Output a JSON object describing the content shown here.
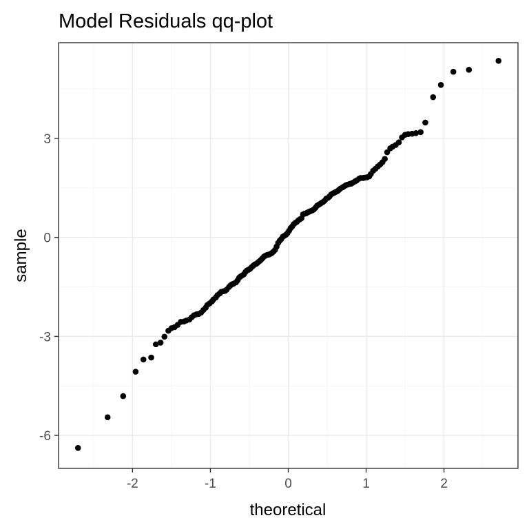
{
  "chart_data": {
    "type": "scatter",
    "title": "Model Residuals qq-plot",
    "xlabel": "theoretical",
    "ylabel": "sample",
    "xlim": [
      -2.95,
      2.95
    ],
    "ylim": [
      -7.0,
      5.9
    ],
    "x_ticks": [
      -2,
      -1,
      0,
      1,
      2
    ],
    "y_ticks": [
      -6,
      -3,
      0,
      3
    ],
    "x_tick_labels": [
      "-2",
      "-1",
      "0",
      "1",
      "2"
    ],
    "y_tick_labels": [
      "-6",
      "-3",
      "0",
      "3"
    ],
    "grid": true,
    "point_color": "#000000",
    "points": [
      [
        -2.7,
        -6.38
      ],
      [
        -2.32,
        -5.45
      ],
      [
        -2.12,
        -4.81
      ],
      [
        -1.96,
        -4.07
      ],
      [
        -1.86,
        -3.7
      ],
      [
        -1.76,
        -3.64
      ],
      [
        -1.7,
        -3.24
      ],
      [
        -1.64,
        -3.19
      ],
      [
        -1.59,
        -3.01
      ],
      [
        -1.54,
        -2.83
      ],
      [
        -1.5,
        -2.75
      ],
      [
        -1.46,
        -2.72
      ],
      [
        -1.42,
        -2.65
      ],
      [
        -1.38,
        -2.56
      ],
      [
        -1.34,
        -2.55
      ],
      [
        -1.31,
        -2.52
      ],
      [
        -1.27,
        -2.49
      ],
      [
        -1.24,
        -2.42
      ],
      [
        -1.21,
        -2.36
      ],
      [
        -1.18,
        -2.33
      ],
      [
        -1.15,
        -2.32
      ],
      [
        -1.12,
        -2.28
      ],
      [
        -1.09,
        -2.2
      ],
      [
        -1.06,
        -2.13
      ],
      [
        -1.04,
        -2.05
      ],
      [
        -1.01,
        -2.0
      ],
      [
        -0.98,
        -1.94
      ],
      [
        -0.96,
        -1.88
      ],
      [
        -0.93,
        -1.82
      ],
      [
        -0.91,
        -1.75
      ],
      [
        -0.88,
        -1.7
      ],
      [
        -0.86,
        -1.65
      ],
      [
        -0.83,
        -1.63
      ],
      [
        -0.81,
        -1.62
      ],
      [
        -0.79,
        -1.58
      ],
      [
        -0.76,
        -1.5
      ],
      [
        -0.74,
        -1.45
      ],
      [
        -0.72,
        -1.42
      ],
      [
        -0.7,
        -1.4
      ],
      [
        -0.67,
        -1.36
      ],
      [
        -0.65,
        -1.3
      ],
      [
        -0.63,
        -1.22
      ],
      [
        -0.61,
        -1.18
      ],
      [
        -0.59,
        -1.15
      ],
      [
        -0.57,
        -1.12
      ],
      [
        -0.55,
        -1.05
      ],
      [
        -0.53,
        -1.0
      ],
      [
        -0.51,
        -0.98
      ],
      [
        -0.49,
        -0.95
      ],
      [
        -0.47,
        -0.9
      ],
      [
        -0.45,
        -0.86
      ],
      [
        -0.43,
        -0.82
      ],
      [
        -0.41,
        -0.8
      ],
      [
        -0.39,
        -0.76
      ],
      [
        -0.37,
        -0.72
      ],
      [
        -0.35,
        -0.68
      ],
      [
        -0.33,
        -0.63
      ],
      [
        -0.31,
        -0.58
      ],
      [
        -0.29,
        -0.55
      ],
      [
        -0.27,
        -0.53
      ],
      [
        -0.25,
        -0.52
      ],
      [
        -0.23,
        -0.5
      ],
      [
        -0.21,
        -0.47
      ],
      [
        -0.19,
        -0.43
      ],
      [
        -0.17,
        -0.38
      ],
      [
        -0.15,
        -0.28
      ],
      [
        -0.13,
        -0.17
      ],
      [
        -0.11,
        -0.1
      ],
      [
        -0.09,
        -0.05
      ],
      [
        -0.07,
        0.02
      ],
      [
        -0.05,
        0.05
      ],
      [
        -0.03,
        0.08
      ],
      [
        -0.01,
        0.13
      ],
      [
        0.01,
        0.2
      ],
      [
        0.03,
        0.28
      ],
      [
        0.05,
        0.33
      ],
      [
        0.07,
        0.4
      ],
      [
        0.09,
        0.44
      ],
      [
        0.11,
        0.47
      ],
      [
        0.13,
        0.52
      ],
      [
        0.15,
        0.55
      ],
      [
        0.17,
        0.58
      ],
      [
        0.19,
        0.7
      ],
      [
        0.21,
        0.72
      ],
      [
        0.23,
        0.73
      ],
      [
        0.25,
        0.76
      ],
      [
        0.27,
        0.78
      ],
      [
        0.29,
        0.8
      ],
      [
        0.31,
        0.82
      ],
      [
        0.33,
        0.85
      ],
      [
        0.35,
        0.9
      ],
      [
        0.37,
        0.96
      ],
      [
        0.39,
        0.99
      ],
      [
        0.41,
        1.02
      ],
      [
        0.43,
        1.05
      ],
      [
        0.45,
        1.08
      ],
      [
        0.47,
        1.12
      ],
      [
        0.49,
        1.18
      ],
      [
        0.51,
        1.2
      ],
      [
        0.53,
        1.24
      ],
      [
        0.55,
        1.3
      ],
      [
        0.57,
        1.33
      ],
      [
        0.59,
        1.35
      ],
      [
        0.61,
        1.38
      ],
      [
        0.63,
        1.4
      ],
      [
        0.65,
        1.44
      ],
      [
        0.67,
        1.48
      ],
      [
        0.7,
        1.52
      ],
      [
        0.72,
        1.55
      ],
      [
        0.74,
        1.58
      ],
      [
        0.76,
        1.6
      ],
      [
        0.79,
        1.62
      ],
      [
        0.81,
        1.63
      ],
      [
        0.83,
        1.66
      ],
      [
        0.86,
        1.7
      ],
      [
        0.88,
        1.73
      ],
      [
        0.91,
        1.78
      ],
      [
        0.93,
        1.8
      ],
      [
        0.96,
        1.8
      ],
      [
        0.98,
        1.81
      ],
      [
        1.01,
        1.82
      ],
      [
        1.04,
        1.85
      ],
      [
        1.06,
        1.92
      ],
      [
        1.09,
        2.02
      ],
      [
        1.12,
        2.08
      ],
      [
        1.15,
        2.15
      ],
      [
        1.18,
        2.21
      ],
      [
        1.21,
        2.28
      ],
      [
        1.24,
        2.38
      ],
      [
        1.27,
        2.58
      ],
      [
        1.31,
        2.7
      ],
      [
        1.34,
        2.75
      ],
      [
        1.38,
        2.8
      ],
      [
        1.42,
        2.88
      ],
      [
        1.46,
        3.03
      ],
      [
        1.5,
        3.11
      ],
      [
        1.54,
        3.13
      ],
      [
        1.59,
        3.14
      ],
      [
        1.64,
        3.16
      ],
      [
        1.7,
        3.19
      ],
      [
        1.76,
        3.48
      ],
      [
        1.86,
        4.25
      ],
      [
        1.96,
        4.62
      ],
      [
        2.12,
        5.02
      ],
      [
        2.32,
        5.08
      ],
      [
        2.7,
        5.35
      ]
    ]
  }
}
